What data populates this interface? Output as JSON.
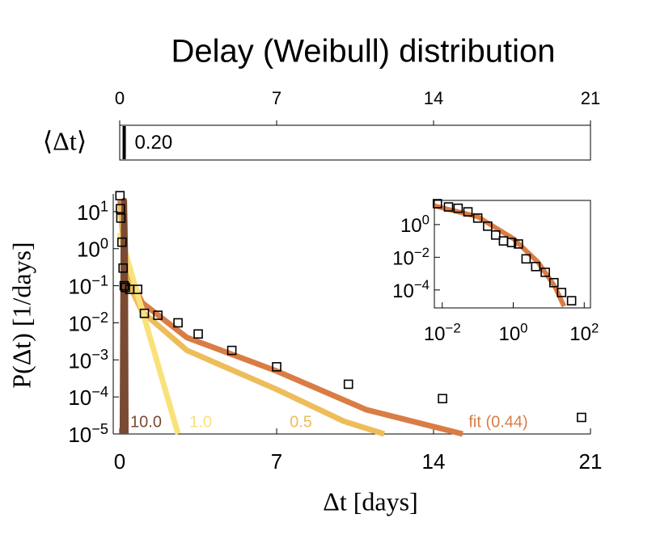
{
  "chart_data": [
    {
      "type": "bar",
      "ylabel": "⟨Δt⟩",
      "values": [
        0.2
      ],
      "value_labels": [
        "0.20"
      ],
      "color": "#000000",
      "xlim": [
        0,
        21
      ],
      "xticks": [
        0,
        7,
        14,
        21
      ]
    },
    {
      "type": "line",
      "title": "Delay (Weibull) distribution",
      "xlabel": "Δt  [days]",
      "ylabel": "P(Δt)  [1/days]",
      "log_y": true,
      "xlim": [
        -0.29,
        21
      ],
      "ylim": [
        1e-05,
        30
      ],
      "xticks": [
        0,
        7,
        14,
        21
      ],
      "yticks": [
        {
          "value": 10,
          "label": "10^1"
        },
        {
          "value": 1,
          "label": "10^0"
        },
        {
          "value": 0.1,
          "label": "10^−1"
        },
        {
          "value": 0.01,
          "label": "10^−2"
        },
        {
          "value": 0.001,
          "label": "10^−3"
        },
        {
          "value": 0.0001,
          "label": "10^−4"
        },
        {
          "value": 1e-05,
          "label": "10^−5"
        }
      ],
      "series": [
        {
          "name": "fit (0.44)",
          "color": "#d97d45",
          "x": [
            0.02,
            0.3,
            1,
            3,
            7,
            11,
            15.3
          ],
          "values": [
            20,
            0.3,
            0.035,
            0.004,
            0.0005,
            4.5e-05,
            1e-05
          ]
        },
        {
          "name": "0.5",
          "color": "#eebd5a",
          "x": [
            0.02,
            0.3,
            1,
            3,
            7,
            10,
            11.8
          ],
          "values": [
            15,
            0.15,
            0.02,
            0.0018,
            0.00016,
            2.2e-05,
            1e-05
          ]
        },
        {
          "name": "1.0",
          "color": "#f9e27a",
          "x": [
            0,
            0.5,
            1,
            1.5,
            2,
            2.6
          ],
          "values": [
            2.7,
            0.24,
            0.022,
            0.002,
            0.00018,
            1e-05
          ]
        },
        {
          "name": "10.0",
          "color": "#7a4a32",
          "x": [
            0.12,
            0.16,
            0.2,
            0.24,
            0.27
          ],
          "values": [
            1e-05,
            1,
            20,
            1,
            1e-05
          ]
        },
        {
          "marker": "square",
          "color": "#000000",
          "x": [
            0.01,
            0.03,
            0.05,
            0.1,
            0.15,
            0.2,
            0.25,
            0.45,
            0.8,
            1.1,
            1.7,
            2.6,
            3.5,
            5,
            7,
            10.2,
            14.4,
            20.6
          ],
          "values": [
            27,
            12,
            6.7,
            1.5,
            0.3,
            0.1,
            0.09,
            0.08,
            0.08,
            0.018,
            0.016,
            0.01,
            0.005,
            0.0018,
            0.00065,
            0.00022,
            9e-05,
            2.8e-05
          ]
        }
      ]
    },
    {
      "type": "line",
      "log_x": true,
      "log_y": true,
      "xlim": [
        0.006,
        150
      ],
      "ylim": [
        8e-06,
        30
      ],
      "xticks": [
        {
          "value": 0.01,
          "label": "10^−2"
        },
        {
          "value": 1,
          "label": "10^0"
        },
        {
          "value": 100,
          "label": "10^2"
        }
      ],
      "yticks": [
        {
          "value": 1,
          "label": "10^0"
        },
        {
          "value": 0.01,
          "label": "10^−2"
        },
        {
          "value": 0.0001,
          "label": "10^−4"
        }
      ],
      "series": [
        {
          "color": "#d97d45",
          "x": [
            0.006,
            0.1,
            1,
            5,
            15,
            27
          ],
          "values": [
            14,
            3,
            0.14,
            0.005,
            0.00016,
            1e-05
          ]
        },
        {
          "marker": "square",
          "color": "#000000",
          "x": [
            0.0073,
            0.015,
            0.028,
            0.053,
            0.1,
            0.19,
            0.32,
            0.53,
            0.9,
            1.4,
            2.3,
            4.3,
            8,
            14,
            23,
            44
          ],
          "values": [
            19,
            12,
            10,
            6,
            2.5,
            0.8,
            0.23,
            0.1,
            0.08,
            0.065,
            0.008,
            0.0027,
            0.0012,
            0.00028,
            7e-05,
            2.2e-05
          ]
        }
      ]
    }
  ]
}
